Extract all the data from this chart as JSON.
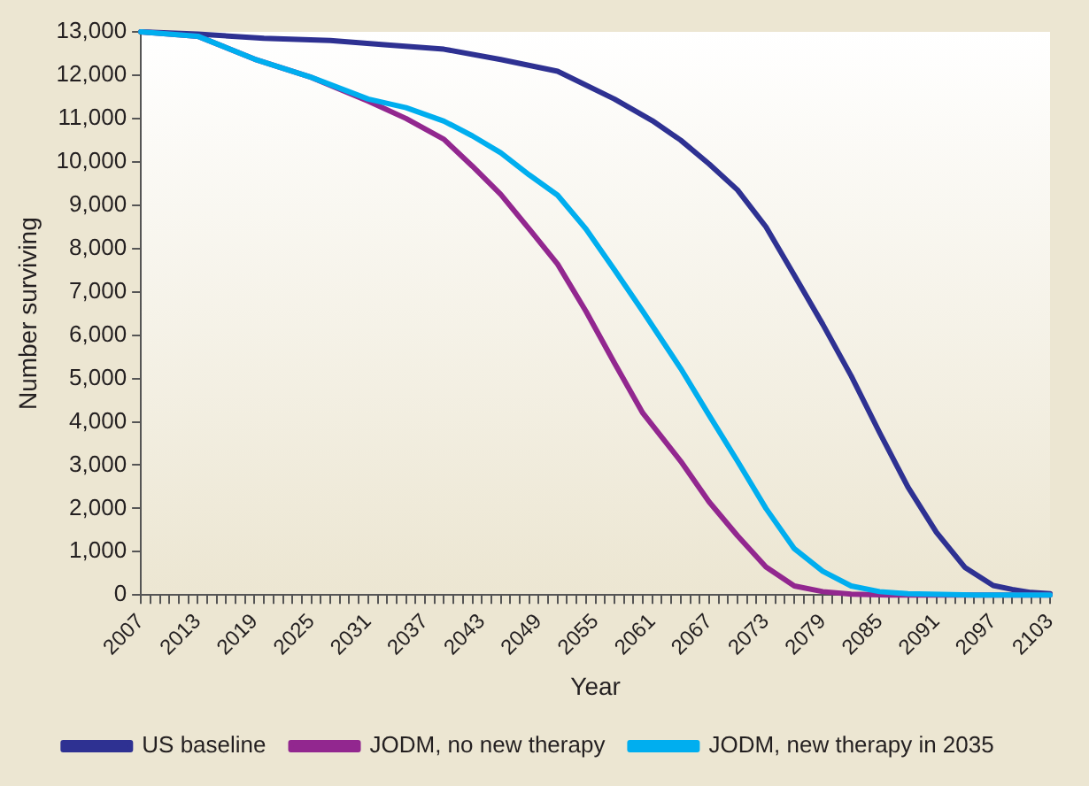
{
  "chart_data": {
    "type": "line",
    "xlabel": "Year",
    "ylabel": "Number surviving",
    "xlim": [
      2007,
      2103
    ],
    "ylim": [
      0,
      13000
    ],
    "yticks": [
      0,
      {
        "value": 1000,
        "label": "1,000"
      },
      {
        "value": 2000,
        "label": "2,000"
      },
      {
        "value": 3000,
        "label": "3,000"
      },
      {
        "value": 4000,
        "label": "4,000"
      },
      {
        "value": 5000,
        "label": "5,000"
      },
      {
        "value": 6000,
        "label": "6,000"
      },
      {
        "value": 7000,
        "label": "7,000"
      },
      {
        "value": 8000,
        "label": "8,000"
      },
      {
        "value": 9000,
        "label": "9,000"
      },
      {
        "value": 10000,
        "label": "10,000"
      },
      {
        "value": 11000,
        "label": "11,000"
      },
      {
        "value": 12000,
        "label": "12,000"
      },
      {
        "value": 13000,
        "label": "13,000"
      }
    ],
    "xticks": [
      2007,
      {
        "value": 2008,
        "label": null
      },
      {
        "value": 2009,
        "label": null
      },
      {
        "value": 2010,
        "label": null
      },
      {
        "value": 2011,
        "label": null
      },
      {
        "value": 2012,
        "label": null
      },
      2013,
      {
        "value": 2014,
        "label": null
      },
      {
        "value": 2015,
        "label": null
      },
      {
        "value": 2016,
        "label": null
      },
      {
        "value": 2017,
        "label": null
      },
      {
        "value": 2018,
        "label": null
      },
      2019,
      {
        "value": 2020,
        "label": null
      },
      {
        "value": 2021,
        "label": null
      },
      {
        "value": 2022,
        "label": null
      },
      {
        "value": 2023,
        "label": null
      },
      {
        "value": 2024,
        "label": null
      },
      2025,
      {
        "value": 2026,
        "label": null
      },
      {
        "value": 2027,
        "label": null
      },
      {
        "value": 2028,
        "label": null
      },
      {
        "value": 2029,
        "label": null
      },
      {
        "value": 2030,
        "label": null
      },
      2031,
      {
        "value": 2032,
        "label": null
      },
      {
        "value": 2033,
        "label": null
      },
      {
        "value": 2034,
        "label": null
      },
      {
        "value": 2035,
        "label": null
      },
      {
        "value": 2036,
        "label": null
      },
      2037,
      {
        "value": 2038,
        "label": null
      },
      {
        "value": 2039,
        "label": null
      },
      {
        "value": 2040,
        "label": null
      },
      {
        "value": 2041,
        "label": null
      },
      {
        "value": 2042,
        "label": null
      },
      2043,
      {
        "value": 2044,
        "label": null
      },
      {
        "value": 2045,
        "label": null
      },
      {
        "value": 2046,
        "label": null
      },
      {
        "value": 2047,
        "label": null
      },
      {
        "value": 2048,
        "label": null
      },
      2049,
      {
        "value": 2050,
        "label": null
      },
      {
        "value": 2051,
        "label": null
      },
      {
        "value": 2052,
        "label": null
      },
      {
        "value": 2053,
        "label": null
      },
      {
        "value": 2054,
        "label": null
      },
      2055,
      {
        "value": 2056,
        "label": null
      },
      {
        "value": 2057,
        "label": null
      },
      {
        "value": 2058,
        "label": null
      },
      {
        "value": 2059,
        "label": null
      },
      {
        "value": 2060,
        "label": null
      },
      2061,
      {
        "value": 2062,
        "label": null
      },
      {
        "value": 2063,
        "label": null
      },
      {
        "value": 2064,
        "label": null
      },
      {
        "value": 2065,
        "label": null
      },
      {
        "value": 2066,
        "label": null
      },
      2067,
      {
        "value": 2068,
        "label": null
      },
      {
        "value": 2069,
        "label": null
      },
      {
        "value": 2070,
        "label": null
      },
      {
        "value": 2071,
        "label": null
      },
      {
        "value": 2072,
        "label": null
      },
      2073,
      {
        "value": 2074,
        "label": null
      },
      {
        "value": 2075,
        "label": null
      },
      {
        "value": 2076,
        "label": null
      },
      {
        "value": 2077,
        "label": null
      },
      {
        "value": 2078,
        "label": null
      },
      2079,
      {
        "value": 2080,
        "label": null
      },
      {
        "value": 2081,
        "label": null
      },
      {
        "value": 2082,
        "label": null
      },
      {
        "value": 2083,
        "label": null
      },
      {
        "value": 2084,
        "label": null
      },
      2085,
      {
        "value": 2086,
        "label": null
      },
      {
        "value": 2087,
        "label": null
      },
      {
        "value": 2088,
        "label": null
      },
      {
        "value": 2089,
        "label": null
      },
      {
        "value": 2090,
        "label": null
      },
      2091,
      {
        "value": 2092,
        "label": null
      },
      {
        "value": 2093,
        "label": null
      },
      {
        "value": 2094,
        "label": null
      },
      {
        "value": 2095,
        "label": null
      },
      {
        "value": 2096,
        "label": null
      },
      2097,
      {
        "value": 2098,
        "label": null
      },
      {
        "value": 2099,
        "label": null
      },
      {
        "value": 2100,
        "label": null
      },
      {
        "value": 2101,
        "label": null
      },
      {
        "value": 2102,
        "label": null
      },
      2103
    ],
    "grid": false,
    "legend": "bottom",
    "marker": "none",
    "line_style": "solid",
    "series": [
      {
        "name": "US baseline",
        "color": "#2e3192",
        "x": [
          2007,
          2013,
          2020,
          2027,
          2033,
          2039,
          2045,
          2051,
          2057,
          2061,
          2064,
          2067,
          2070,
          2073,
          2076,
          2079,
          2082,
          2085,
          2088,
          2091,
          2094,
          2097,
          2099,
          2101,
          2103
        ],
        "values": [
          13000,
          12950,
          12850,
          12800,
          12700,
          12600,
          12360,
          12090,
          11450,
          10950,
          10500,
          9950,
          9350,
          8500,
          7380,
          6250,
          5060,
          3750,
          2490,
          1450,
          640,
          220,
          130,
          60,
          30
        ]
      },
      {
        "name": "JODM, no new therapy",
        "color": "#92278f",
        "x": [
          2007,
          2013,
          2019,
          2025,
          2031,
          2035,
          2039,
          2042,
          2045,
          2048,
          2051,
          2054,
          2057,
          2060,
          2064,
          2067,
          2070,
          2073,
          2076,
          2079,
          2082,
          2086,
          2090,
          2103
        ],
        "values": [
          13000,
          12900,
          12370,
          11950,
          11400,
          11000,
          10520,
          9900,
          9250,
          8450,
          7640,
          6550,
          5360,
          4200,
          3090,
          2150,
          1370,
          650,
          210,
          80,
          20,
          0,
          0,
          0
        ]
      },
      {
        "name": "JODM, new therapy in 2035",
        "color": "#00aeef",
        "x": [
          2007,
          2013,
          2019,
          2025,
          2031,
          2035,
          2039,
          2042,
          2045,
          2048,
          2051,
          2054,
          2057,
          2060,
          2064,
          2067,
          2070,
          2073,
          2076,
          2079,
          2082,
          2085,
          2088,
          2095,
          2103
        ],
        "values": [
          13000,
          12900,
          12370,
          11950,
          11450,
          11250,
          10940,
          10600,
          10210,
          9700,
          9230,
          8450,
          7510,
          6550,
          5230,
          4150,
          3090,
          2000,
          1070,
          550,
          210,
          80,
          30,
          0,
          0
        ]
      }
    ]
  }
}
